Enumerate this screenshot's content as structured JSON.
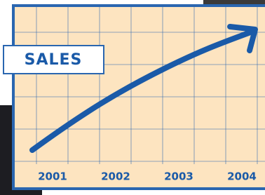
{
  "chart_data": {
    "type": "line",
    "title": "SALES",
    "categories": [
      "2001",
      "2002",
      "2003",
      "2004"
    ]
  }
}
